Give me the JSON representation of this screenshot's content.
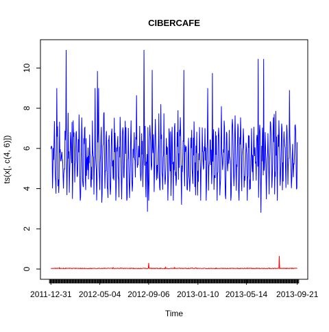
{
  "chart_data": {
    "type": "line",
    "title": "CIBERCAFE",
    "xlabel": "Time",
    "ylabel": "ts(x[, c(4, 6)])",
    "ylim": [
      0,
      11
    ],
    "y_ticks": [
      0,
      2,
      4,
      6,
      8,
      10
    ],
    "x_tick_labels": [
      "2011-12-31",
      "2012-05-04",
      "2012-09-06",
      "2013-01-10",
      "2013-05-14",
      "2013-09-21"
    ],
    "x_tick_dates": [
      "2011-12-31",
      "2012-05-04",
      "2012-09-06",
      "2013-01-10",
      "2013-05-14",
      "2013-09-21"
    ],
    "x_range": [
      "2011-12-27",
      "2013-09-25"
    ],
    "grid": false,
    "legend": "none",
    "series": [
      {
        "color": "#0000ff",
        "spikes": [
          {
            "date": "2012-02-08",
            "value": 10.9
          },
          {
            "date": "2012-08-25",
            "value": 10.9
          },
          {
            "date": "2013-06-13",
            "value": 10.45
          },
          {
            "date": "2013-06-27",
            "value": 10.45
          },
          {
            "date": "2012-04-28",
            "value": 9.85
          },
          {
            "date": "2012-09-15",
            "value": 9.9
          },
          {
            "date": "2012-12-05",
            "value": 9.9
          },
          {
            "date": "2013-02-16",
            "value": 9.75
          },
          {
            "date": "2012-09-03",
            "value": 2.85
          },
          {
            "date": "2013-06-20",
            "value": 2.8
          },
          {
            "date": "2012-05-09",
            "value": 3.3
          },
          {
            "date": "2012-11-29",
            "value": 3.2
          },
          {
            "date": "2013-09-01",
            "value": 8.9
          }
        ],
        "baseline": 5.5,
        "amplitude": 1.2
      },
      {
        "color": "#ff0000",
        "spikes": [
          {
            "date": "2012-09-06",
            "value": 0.3
          },
          {
            "date": "2013-08-06",
            "value": 0.65
          }
        ],
        "baseline": 0.03
      }
    ]
  }
}
